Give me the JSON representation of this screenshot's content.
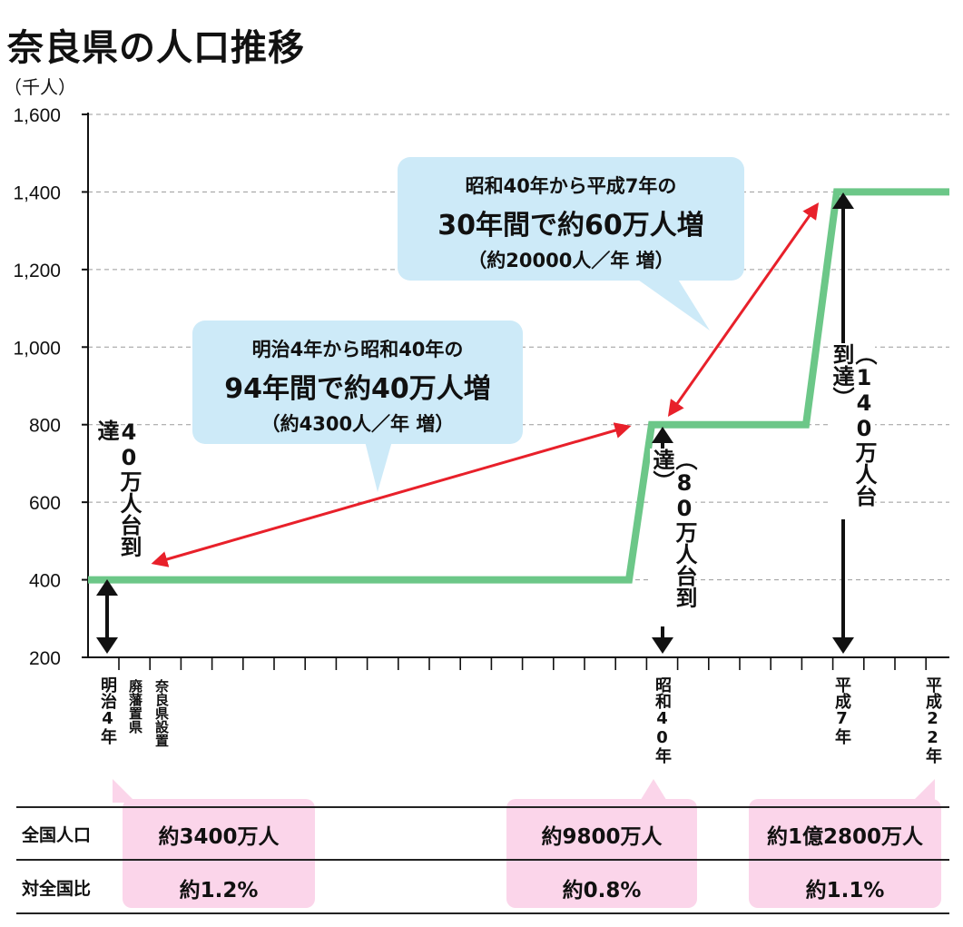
{
  "title": "奈良県の人口推移",
  "unit": "（千人）",
  "chart_data": {
    "type": "line",
    "ylim": [
      200,
      1600
    ],
    "yticks": [
      200,
      400,
      600,
      800,
      1000,
      1200,
      1400,
      1600
    ],
    "ytick_labels": [
      "200",
      "400",
      "600",
      "800",
      "1,000",
      "1,200",
      "1,400",
      "1,600"
    ],
    "grid": true,
    "series": [
      {
        "color": "#6cc788",
        "points": [
          [
            0,
            400
          ],
          [
            18,
            400
          ],
          [
            19,
            800
          ],
          [
            24,
            800
          ],
          [
            25,
            1400
          ],
          [
            30,
            1400
          ]
        ]
      }
    ],
    "x_labels": [
      {
        "x": 0,
        "text": "明治4年"
      },
      {
        "x": 1,
        "text": "廃藩置県"
      },
      {
        "x": 2,
        "text": "奈良県設置"
      },
      {
        "x": 19,
        "text": "昭和40年"
      },
      {
        "x": 25,
        "text": "平成7年"
      },
      {
        "x": 28,
        "text": "平成22年"
      }
    ],
    "annotations": [
      {
        "text": "40万人台到達",
        "x": 0,
        "value": 400
      },
      {
        "text": "（80万人台到達）",
        "x": 19,
        "value": 800
      },
      {
        "text": "（140万人台到達）",
        "x": 25,
        "value": 1400
      }
    ]
  },
  "bubbles": {
    "first": {
      "line1": "明治4年から昭和40年の",
      "line2": "94年間で約40万人増",
      "line3": "（約4300人／年 増）"
    },
    "second": {
      "line1": "昭和40年から平成7年の",
      "line2": "30年間で約60万人増",
      "line3": "（約20000人／年 増）"
    }
  },
  "table": {
    "rows": [
      {
        "label": "全国人口",
        "values": [
          "約3400万人",
          "約9800万人",
          "約1億2800万人"
        ]
      },
      {
        "label": "対全国比",
        "values": [
          "約1.2%",
          "約0.8%",
          "約1.1%"
        ]
      }
    ]
  },
  "colors": {
    "line": "#6cc788",
    "arrow": "#e8202a",
    "bubble": "#cdeaf8",
    "highlight": "#fbd5ea"
  }
}
